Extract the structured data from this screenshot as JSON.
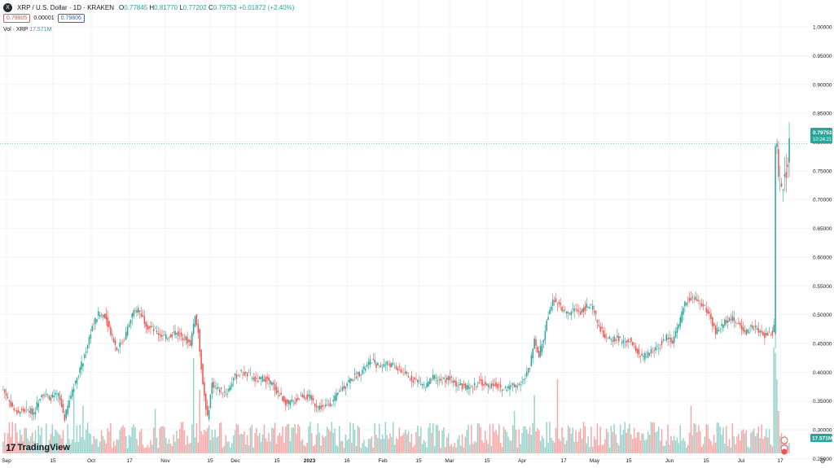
{
  "header": {
    "symbol_icon": "X",
    "title": "XRP / U.S. Dollar · 1D · KRAKEN",
    "open_label": "O",
    "open": "0.77845",
    "high_label": "H",
    "high": "0.81770",
    "low_label": "L",
    "low": "0.77202",
    "close_label": "C",
    "close": "0.79753",
    "change": "+0.01872 (+2.40%)",
    "sell": "0.79805",
    "spread": "0.00001",
    "buy": "0.79806",
    "vol_label": "Vol · XRP",
    "vol_value": "17.571M"
  },
  "price_tag": {
    "price": "0.79753",
    "countdown": "10:24:21"
  },
  "vol_tag": "17.571M",
  "logo": {
    "mark": "17",
    "text": "TradingView"
  },
  "colors": {
    "up": "#26a69a",
    "down": "#ef5350",
    "up_vol": "#9ad3cc",
    "down_vol": "#f5a9a7",
    "grid": "#f0f3fa",
    "axis_text": "#131722"
  },
  "chart_data": {
    "type": "candlestick",
    "yaxis_ticks": [
      "1.00000",
      "0.95000",
      "0.90000",
      "0.85000",
      "0.80000",
      "0.75000",
      "0.70000",
      "0.65000",
      "0.60000",
      "0.55000",
      "0.50000",
      "0.45000",
      "0.40000",
      "0.35000",
      "0.30000",
      "0.25000"
    ],
    "ylim": [
      0.235,
      1.02
    ],
    "xaxis_ticks": [
      "Sep",
      "15",
      "Oct",
      "17",
      "Nov",
      "15",
      "Dec",
      "15",
      "2023",
      "16",
      "Feb",
      "15",
      "Mar",
      "15",
      "Apr",
      "17",
      "May",
      "15",
      "Jun",
      "15",
      "Jul",
      "17"
    ],
    "last_price": 0.79753,
    "anchors": [
      [
        0,
        0.37
      ],
      [
        8,
        0.33
      ],
      [
        15,
        0.335
      ],
      [
        20,
        0.33
      ],
      [
        25,
        0.365
      ],
      [
        30,
        0.355
      ],
      [
        36,
        0.36
      ],
      [
        40,
        0.32
      ],
      [
        45,
        0.37
      ],
      [
        52,
        0.42
      ],
      [
        58,
        0.48
      ],
      [
        62,
        0.5
      ],
      [
        66,
        0.5
      ],
      [
        70,
        0.47
      ],
      [
        74,
        0.44
      ],
      [
        79,
        0.46
      ],
      [
        84,
        0.5
      ],
      [
        88,
        0.51
      ],
      [
        94,
        0.48
      ],
      [
        100,
        0.47
      ],
      [
        106,
        0.46
      ],
      [
        112,
        0.47
      ],
      [
        118,
        0.46
      ],
      [
        122,
        0.45
      ],
      [
        125,
        0.5
      ],
      [
        127,
        0.47
      ],
      [
        130,
        0.38
      ],
      [
        133,
        0.32
      ],
      [
        136,
        0.38
      ],
      [
        140,
        0.37
      ],
      [
        146,
        0.365
      ],
      [
        150,
        0.39
      ],
      [
        155,
        0.4
      ],
      [
        160,
        0.395
      ],
      [
        165,
        0.385
      ],
      [
        170,
        0.39
      ],
      [
        175,
        0.38
      ],
      [
        180,
        0.36
      ],
      [
        185,
        0.345
      ],
      [
        190,
        0.35
      ],
      [
        195,
        0.36
      ],
      [
        200,
        0.355
      ],
      [
        205,
        0.34
      ],
      [
        210,
        0.34
      ],
      [
        215,
        0.35
      ],
      [
        220,
        0.37
      ],
      [
        225,
        0.385
      ],
      [
        230,
        0.395
      ],
      [
        235,
        0.405
      ],
      [
        240,
        0.42
      ],
      [
        245,
        0.41
      ],
      [
        250,
        0.415
      ],
      [
        255,
        0.41
      ],
      [
        260,
        0.4
      ],
      [
        265,
        0.39
      ],
      [
        270,
        0.385
      ],
      [
        275,
        0.375
      ],
      [
        280,
        0.39
      ],
      [
        285,
        0.385
      ],
      [
        290,
        0.39
      ],
      [
        295,
        0.38
      ],
      [
        300,
        0.375
      ],
      [
        305,
        0.37
      ],
      [
        310,
        0.385
      ],
      [
        315,
        0.375
      ],
      [
        320,
        0.38
      ],
      [
        325,
        0.37
      ],
      [
        330,
        0.375
      ],
      [
        335,
        0.38
      ],
      [
        340,
        0.39
      ],
      [
        343,
        0.41
      ],
      [
        346,
        0.46
      ],
      [
        349,
        0.43
      ],
      [
        352,
        0.46
      ],
      [
        355,
        0.5
      ],
      [
        358,
        0.53
      ],
      [
        361,
        0.52
      ],
      [
        364,
        0.51
      ],
      [
        368,
        0.5
      ],
      [
        372,
        0.51
      ],
      [
        376,
        0.505
      ],
      [
        380,
        0.515
      ],
      [
        384,
        0.51
      ],
      [
        388,
        0.48
      ],
      [
        392,
        0.46
      ],
      [
        396,
        0.455
      ],
      [
        400,
        0.46
      ],
      [
        404,
        0.45
      ],
      [
        408,
        0.455
      ],
      [
        412,
        0.44
      ],
      [
        416,
        0.425
      ],
      [
        420,
        0.43
      ],
      [
        424,
        0.44
      ],
      [
        428,
        0.45
      ],
      [
        432,
        0.46
      ],
      [
        436,
        0.455
      ],
      [
        440,
        0.48
      ],
      [
        444,
        0.52
      ],
      [
        448,
        0.53
      ],
      [
        452,
        0.525
      ],
      [
        456,
        0.515
      ],
      [
        460,
        0.5
      ],
      [
        464,
        0.47
      ],
      [
        468,
        0.48
      ],
      [
        472,
        0.495
      ],
      [
        476,
        0.49
      ],
      [
        480,
        0.48
      ],
      [
        484,
        0.47
      ],
      [
        488,
        0.48
      ],
      [
        492,
        0.47
      ],
      [
        496,
        0.465
      ],
      [
        499,
        0.468
      ],
      [
        501,
        0.468
      ],
      [
        502,
        0.48
      ],
      [
        503,
        0.8
      ],
      [
        504,
        0.79
      ],
      [
        505,
        0.73
      ],
      [
        506,
        0.72
      ],
      [
        508,
        0.73
      ],
      [
        511,
        0.76
      ],
      [
        512,
        0.798
      ]
    ],
    "volume_spikes": [
      [
        46,
        0.55
      ],
      [
        52,
        0.45
      ],
      [
        99,
        0.42
      ],
      [
        124,
        0.9
      ],
      [
        128,
        0.6
      ],
      [
        333,
        0.4
      ],
      [
        346,
        0.55
      ],
      [
        361,
        0.7
      ],
      [
        448,
        0.45
      ],
      [
        502,
        1.0
      ],
      [
        503,
        0.95
      ],
      [
        504,
        0.7
      ],
      [
        505,
        0.4
      ]
    ]
  }
}
